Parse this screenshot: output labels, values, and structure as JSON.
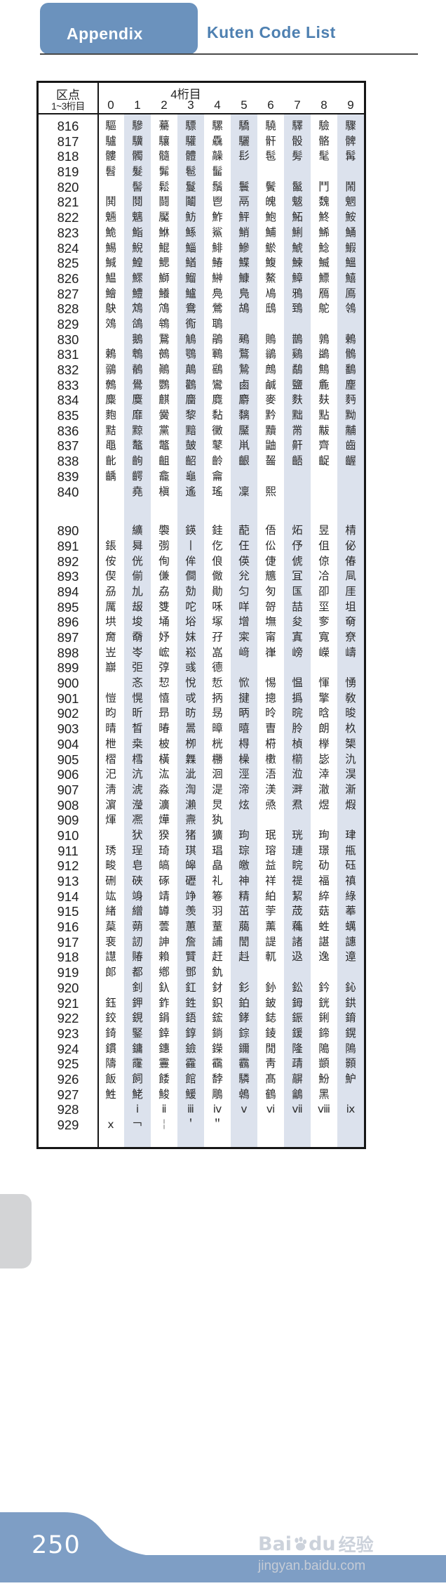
{
  "page_header": {
    "tab_label": "Appendix",
    "title": "Kuten Code List"
  },
  "table": {
    "corner_top": "区点",
    "corner_bottom": "1~3桁目",
    "digit_group_label": "4桁目",
    "col_headers": [
      "0",
      "1",
      "2",
      "3",
      "4",
      "5",
      "6",
      "7",
      "8",
      "9"
    ],
    "blocks": [
      {
        "rows": [
          {
            "label": "816",
            "cells": [
              "驅",
              "驂",
              "驀",
              "驃",
              "騾",
              "驕",
              "驍",
              "驛",
              "驗",
              "驟"
            ]
          },
          {
            "label": "817",
            "cells": [
              "驢",
              "驥",
              "驤",
              "驩",
              "驫",
              "驪",
              "骭",
              "骰",
              "骼",
              "髀"
            ]
          },
          {
            "label": "818",
            "cells": [
              "髏",
              "髑",
              "髓",
              "體",
              "髞",
              "髟",
              "髢",
              "髣",
              "髦",
              "髯"
            ]
          },
          {
            "label": "819",
            "cells": [
              "髫",
              "髮",
              "髴",
              "髱",
              "髷",
              "",
              "",
              "",
              "",
              ""
            ]
          },
          {
            "label": "820",
            "cells": [
              "",
              "髻",
              "鬆",
              "鬘",
              "鬚",
              "鬟",
              "鬢",
              "鬣",
              "鬥",
              "鬧"
            ]
          },
          {
            "label": "821",
            "cells": [
              "鬨",
              "鬩",
              "鬪",
              "鬮",
              "鬯",
              "鬲",
              "魄",
              "魃",
              "魏",
              "魍"
            ]
          },
          {
            "label": "822",
            "cells": [
              "魎",
              "魑",
              "魘",
              "魴",
              "鮓",
              "鮃",
              "鮑",
              "鮖",
              "鮗",
              "鮟"
            ]
          },
          {
            "label": "823",
            "cells": [
              "鮠",
              "鮨",
              "鮴",
              "鯀",
              "鯊",
              "鮹",
              "鯆",
              "鯏",
              "鯑",
              "鯒"
            ]
          },
          {
            "label": "824",
            "cells": [
              "鯣",
              "鯢",
              "鯤",
              "鯔",
              "鯡",
              "鰺",
              "鯲",
              "鯱",
              "鯰",
              "鰕"
            ]
          },
          {
            "label": "825",
            "cells": [
              "鰔",
              "鰉",
              "鰓",
              "鰌",
              "鰆",
              "鰈",
              "鰒",
              "鰊",
              "鰄",
              "鰮"
            ]
          },
          {
            "label": "826",
            "cells": [
              "鰛",
              "鰥",
              "鰤",
              "鰡",
              "鰰",
              "鱇",
              "鰲",
              "鱆",
              "鰾",
              "鱚"
            ]
          },
          {
            "label": "827",
            "cells": [
              "鱠",
              "鱧",
              "鱶",
              "鱸",
              "鳧",
              "鳬",
              "鳰",
              "鴉",
              "鴈",
              "鳫"
            ]
          },
          {
            "label": "828",
            "cells": [
              "鴃",
              "鴆",
              "鴪",
              "鴦",
              "鶯",
              "鴣",
              "鴟",
              "鵄",
              "鴕",
              "鴒"
            ]
          },
          {
            "label": "829",
            "cells": [
              "鵁",
              "鴿",
              "鴾",
              "鵆",
              "鵈",
              "",
              "",
              "",
              "",
              ""
            ]
          },
          {
            "label": "830",
            "cells": [
              "",
              "鵝",
              "鵞",
              "鵤",
              "鵑",
              "鵐",
              "鵙",
              "鵲",
              "鶉",
              "鶇"
            ]
          },
          {
            "label": "831",
            "cells": [
              "鶫",
              "鵯",
              "鵺",
              "鶚",
              "鶤",
              "鶩",
              "鶲",
              "鷄",
              "鷁",
              "鶻"
            ]
          },
          {
            "label": "832",
            "cells": [
              "鶸",
              "鶺",
              "鷆",
              "鷏",
              "鷂",
              "鷙",
              "鷓",
              "鷸",
              "鷦",
              "鷭"
            ]
          },
          {
            "label": "833",
            "cells": [
              "鷯",
              "鷽",
              "鸚",
              "鸛",
              "鸞",
              "鹵",
              "鹹",
              "鹽",
              "麁",
              "麈"
            ]
          },
          {
            "label": "834",
            "cells": [
              "麋",
              "麌",
              "麒",
              "麕",
              "麑",
              "麝",
              "麥",
              "麩",
              "麸",
              "麪"
            ]
          },
          {
            "label": "835",
            "cells": [
              "麭",
              "靡",
              "黌",
              "黎",
              "黏",
              "黐",
              "黔",
              "黜",
              "點",
              "黝"
            ]
          },
          {
            "label": "836",
            "cells": [
              "黠",
              "黥",
              "黨",
              "黯",
              "黴",
              "黶",
              "黷",
              "黹",
              "黻",
              "黼"
            ]
          },
          {
            "label": "837",
            "cells": [
              "黽",
              "鼇",
              "鼈",
              "皷",
              "鼕",
              "鼡",
              "鼬",
              "鼾",
              "齊",
              "齒"
            ]
          },
          {
            "label": "838",
            "cells": [
              "齔",
              "齣",
              "齟",
              "齠",
              "齡",
              "齦",
              "齧",
              "齬",
              "齪",
              "齷"
            ]
          },
          {
            "label": "839",
            "cells": [
              "齲",
              "齶",
              "龕",
              "龜",
              "龠",
              "",
              "",
              "",
              "",
              ""
            ]
          },
          {
            "label": "840",
            "cells": [
              "",
              "堯",
              "槇",
              "遙",
              "瑤",
              "凜",
              "熙",
              "",
              "",
              ""
            ]
          }
        ]
      },
      {
        "rows": [
          {
            "label": "890",
            "cells": [
              "",
              "纊",
              "褜",
              "鍈",
              "銈",
              "蓜",
              "俉",
              "炻",
              "昱",
              "棈"
            ]
          },
          {
            "label": "891",
            "cells": [
              "鋹",
              "曻",
              "彅",
              "丨",
              "仡",
              "仼",
              "伀",
              "伃",
              "伹",
              "佖"
            ]
          },
          {
            "label": "892",
            "cells": [
              "侒",
              "侊",
              "侚",
              "侔",
              "俍",
              "偀",
              "倢",
              "俿",
              "倞",
              "偆"
            ]
          },
          {
            "label": "893",
            "cells": [
              "偰",
              "偂",
              "傔",
              "僴",
              "僘",
              "兊",
              "兤",
              "冝",
              "冾",
              "凬"
            ]
          },
          {
            "label": "894",
            "cells": [
              "刕",
              "劜",
              "劦",
              "勀",
              "勛",
              "匀",
              "匇",
              "匤",
              "卲",
              "厓"
            ]
          },
          {
            "label": "895",
            "cells": [
              "厲",
              "叝",
              "﨎",
              "咜",
              "咊",
              "咩",
              "哿",
              "喆",
              "坙",
              "坥"
            ]
          },
          {
            "label": "896",
            "cells": [
              "垬",
              "埈",
              "埇",
              "﨏",
              "塚",
              "增",
              "墲",
              "夋",
              "奓",
              "奛"
            ]
          },
          {
            "label": "897",
            "cells": [
              "奝",
              "奣",
              "妤",
              "妺",
              "孖",
              "寀",
              "甯",
              "寘",
              "寬",
              "尞"
            ]
          },
          {
            "label": "898",
            "cells": [
              "岦",
              "岺",
              "峵",
              "崧",
              "嵓",
              "﨑",
              "嵂",
              "嵭",
              "嶸",
              "嶹"
            ]
          },
          {
            "label": "899",
            "cells": [
              "巐",
              "弡",
              "弴",
              "彧",
              "德",
              "",
              "",
              "",
              "",
              ""
            ]
          },
          {
            "label": "900",
            "cells": [
              "",
              "忞",
              "恝",
              "悅",
              "悊",
              "惞",
              "惕",
              "愠",
              "惲",
              "愑"
            ]
          },
          {
            "label": "901",
            "cells": [
              "愷",
              "愰",
              "憘",
              "戓",
              "抦",
              "揵",
              "摠",
              "撝",
              "擎",
              "敎"
            ]
          },
          {
            "label": "902",
            "cells": [
              "昀",
              "昕",
              "昻",
              "昉",
              "昮",
              "昞",
              "昤",
              "晥",
              "晗",
              "晙"
            ]
          },
          {
            "label": "903",
            "cells": [
              "晴",
              "晳",
              "暙",
              "暠",
              "暲",
              "暿",
              "曺",
              "朎",
              "朗",
              "杦"
            ]
          },
          {
            "label": "904",
            "cells": [
              "枻",
              "桒",
              "柀",
              "栁",
              "桄",
              "棏",
              "﨓",
              "楨",
              "﨔",
              "榘"
            ]
          },
          {
            "label": "905",
            "cells": [
              "槢",
              "樰",
              "橫",
              "橆",
              "橳",
              "橾",
              "櫢",
              "櫤",
              "毖",
              "氿"
            ]
          },
          {
            "label": "906",
            "cells": [
              "汜",
              "沆",
              "汯",
              "泚",
              "洄",
              "涇",
              "浯",
              "涖",
              "涬",
              "淏"
            ]
          },
          {
            "label": "907",
            "cells": [
              "淸",
              "淲",
              "淼",
              "渹",
              "湜",
              "渧",
              "渼",
              "溿",
              "澈",
              "澵"
            ]
          },
          {
            "label": "908",
            "cells": [
              "濵",
              "瀅",
              "瀇",
              "瀨",
              "炅",
              "炫",
              "焏",
              "焄",
              "煜",
              "煆"
            ]
          },
          {
            "label": "909",
            "cells": [
              "煇",
              "凞",
              "燁",
              "燾",
              "犱",
              "",
              "",
              "",
              "",
              ""
            ]
          },
          {
            "label": "910",
            "cells": [
              "",
              "犾",
              "猤",
              "猪",
              "獷",
              "玽",
              "珉",
              "珖",
              "珣",
              "珒"
            ]
          },
          {
            "label": "911",
            "cells": [
              "琇",
              "珵",
              "琦",
              "琪",
              "琩",
              "琮",
              "瑢",
              "璉",
              "璟",
              "甁"
            ]
          },
          {
            "label": "912",
            "cells": [
              "畯",
              "皂",
              "皜",
              "皞",
              "皛",
              "皦",
              "益",
              "睆",
              "劯",
              "砡"
            ]
          },
          {
            "label": "913",
            "cells": [
              "硎",
              "硤",
              "硺",
              "礰",
              "礼",
              "神",
              "祥",
              "禔",
              "福",
              "禛"
            ]
          },
          {
            "label": "914",
            "cells": [
              "竑",
              "竧",
              "靖",
              "竫",
              "箞",
              "精",
              "絈",
              "絜",
              "綷",
              "綠"
            ]
          },
          {
            "label": "915",
            "cells": [
              "緖",
              "繒",
              "罇",
              "羡",
              "羽",
              "茁",
              "荢",
              "荿",
              "菇",
              "菶"
            ]
          },
          {
            "label": "916",
            "cells": [
              "葈",
              "蒴",
              "蕓",
              "蕙",
              "蕫",
              "﨟",
              "薰",
              "蘒",
              "﨡",
              "蠇"
            ]
          },
          {
            "label": "917",
            "cells": [
              "裵",
              "訒",
              "訷",
              "詹",
              "誧",
              "誾",
              "諟",
              "諸",
              "諶",
              "譓"
            ]
          },
          {
            "label": "918",
            "cells": [
              "譿",
              "賰",
              "賴",
              "贒",
              "赶",
              "﨣",
              "軏",
              "﨤",
              "逸",
              "遧"
            ]
          },
          {
            "label": "919",
            "cells": [
              "郞",
              "都",
              "鄕",
              "鄧",
              "釚",
              "",
              "",
              "",
              "",
              ""
            ]
          },
          {
            "label": "920",
            "cells": [
              "",
              "釗",
              "釞",
              "釭",
              "釮",
              "釤",
              "釥",
              "鈆",
              "鈐",
              "鈊"
            ]
          },
          {
            "label": "921",
            "cells": [
              "鈺",
              "鉀",
              "鈼",
              "鉎",
              "鉙",
              "鉑",
              "鈹",
              "鉧",
              "銧",
              "鉷"
            ]
          },
          {
            "label": "922",
            "cells": [
              "鉸",
              "鋧",
              "鋗",
              "鋙",
              "鋐",
              "﨧",
              "鋕",
              "鋠",
              "鋓",
              "錥"
            ]
          },
          {
            "label": "923",
            "cells": [
              "錡",
              "鋻",
              "﨨",
              "錞",
              "鋿",
              "錝",
              "錂",
              "鍰",
              "鍗",
              "鎤"
            ]
          },
          {
            "label": "924",
            "cells": [
              "鏆",
              "鏞",
              "鏸",
              "鐱",
              "鑅",
              "鑈",
              "閒",
              "隆",
              "﨩",
              "隝"
            ]
          },
          {
            "label": "925",
            "cells": [
              "隯",
              "霳",
              "霻",
              "靃",
              "靍",
              "靏",
              "靑",
              "靕",
              "顗",
              "顥"
            ]
          },
          {
            "label": "926",
            "cells": [
              "飯",
              "飼",
              "餧",
              "館",
              "馞",
              "驎",
              "髙",
              "髜",
              "魵",
              "魲"
            ]
          },
          {
            "label": "927",
            "cells": [
              "鮏",
              "鮱",
              "鮻",
              "鰀",
              "鵰",
              "鵫",
              "鶴",
              "鸙",
              "黑",
              ""
            ]
          },
          {
            "label": "928",
            "cells": [
              "",
              "ⅰ",
              "ⅱ",
              "ⅲ",
              "ⅳ",
              "ⅴ",
              "ⅵ",
              "ⅶ",
              "ⅷ",
              "ⅸ"
            ]
          },
          {
            "label": "929",
            "cells": [
              "ⅹ",
              "￢",
              "￤",
              "＇",
              "＂",
              "",
              "",
              "",
              "",
              ""
            ]
          }
        ]
      }
    ]
  },
  "footer": {
    "page_number": "250"
  },
  "watermark": {
    "brand_left": "Bai",
    "brand_right": "du",
    "brand_cjk": "经验",
    "url": "jingyan.baidu.com"
  },
  "colors": {
    "header_box": "#6b92bd",
    "title_text": "#4e80b1",
    "stripe": "#dce2ed",
    "footer_blue": "#7e9ec5",
    "side_tab": "#d3d4d6",
    "border": "#161616"
  }
}
